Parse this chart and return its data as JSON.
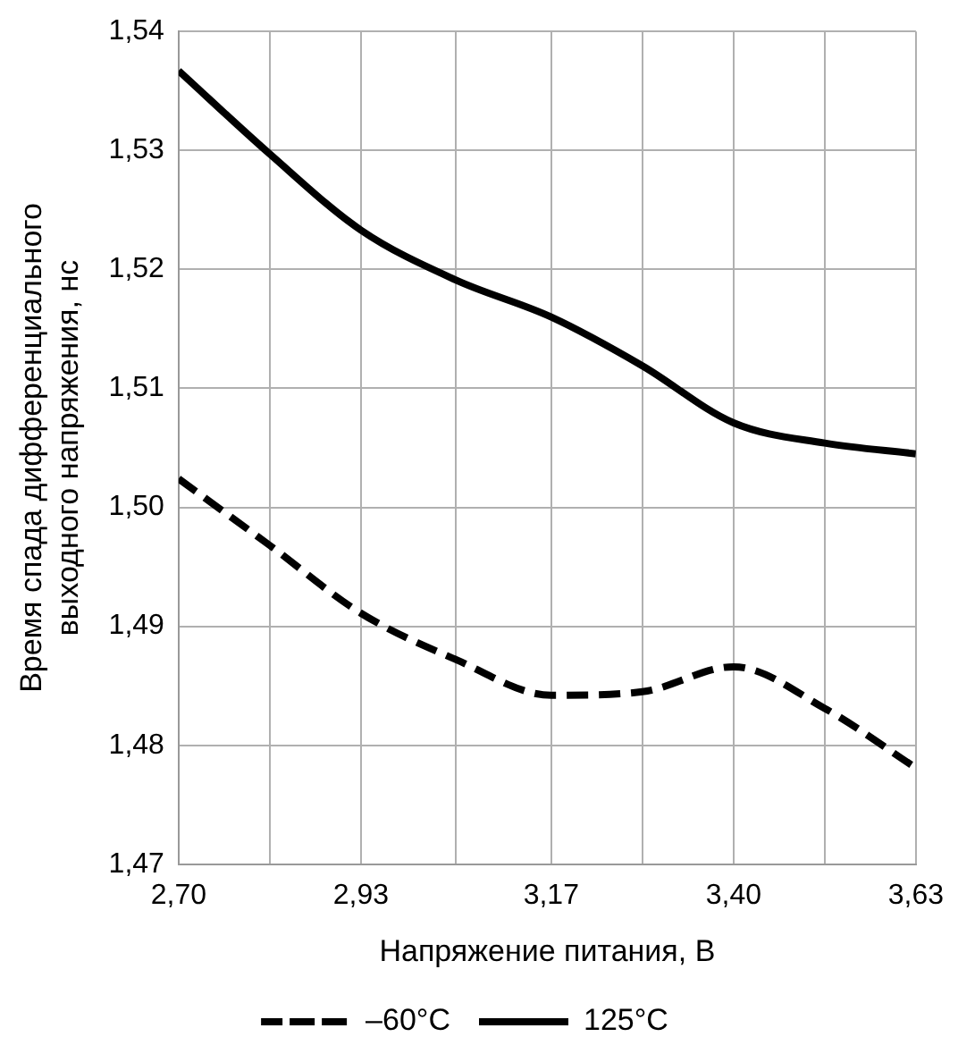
{
  "chart_data": {
    "type": "line",
    "xlabel": "Напряжение питания, В",
    "ylabel": "Время спада дифференциального\nвыходного напряжения, нс",
    "x": [
      2.7,
      2.815,
      2.93,
      3.05,
      3.17,
      3.285,
      3.4,
      3.515,
      3.63
    ],
    "series": [
      {
        "name": "–60°C",
        "color": "#000000",
        "line_style": "dashed",
        "values": [
          1.5024,
          1.4968,
          1.4911,
          1.4872,
          1.4842,
          1.4845,
          1.4866,
          1.4831,
          1.4781
        ]
      },
      {
        "name": "125°C",
        "color": "#000000",
        "line_style": "solid",
        "values": [
          1.5367,
          1.5297,
          1.5233,
          1.5191,
          1.516,
          1.5119,
          1.5071,
          1.5054,
          1.5045
        ]
      }
    ],
    "xlim": [
      2.7,
      3.63
    ],
    "xticks": [
      {
        "value": 2.7,
        "label": "2,70"
      },
      {
        "value": 2.815,
        "label": null
      },
      {
        "value": 2.93,
        "label": "2,93"
      },
      {
        "value": 3.05,
        "label": null
      },
      {
        "value": 3.17,
        "label": "3,17"
      },
      {
        "value": 3.285,
        "label": null
      },
      {
        "value": 3.4,
        "label": "3,40"
      },
      {
        "value": 3.515,
        "label": null
      },
      {
        "value": 3.63,
        "label": "3,63"
      }
    ],
    "ylim": [
      1.47,
      1.54
    ],
    "yticks": [
      {
        "value": 1.47,
        "label": "1,47"
      },
      {
        "value": 1.48,
        "label": "1,48"
      },
      {
        "value": 1.49,
        "label": "1,49"
      },
      {
        "value": 1.5,
        "label": "1,50"
      },
      {
        "value": 1.51,
        "label": "1,51"
      },
      {
        "value": 1.52,
        "label": "1,52"
      },
      {
        "value": 1.53,
        "label": "1,53"
      },
      {
        "value": 1.54,
        "label": "1,54"
      }
    ],
    "grid": true,
    "legend": "bottom",
    "marker": "none"
  }
}
